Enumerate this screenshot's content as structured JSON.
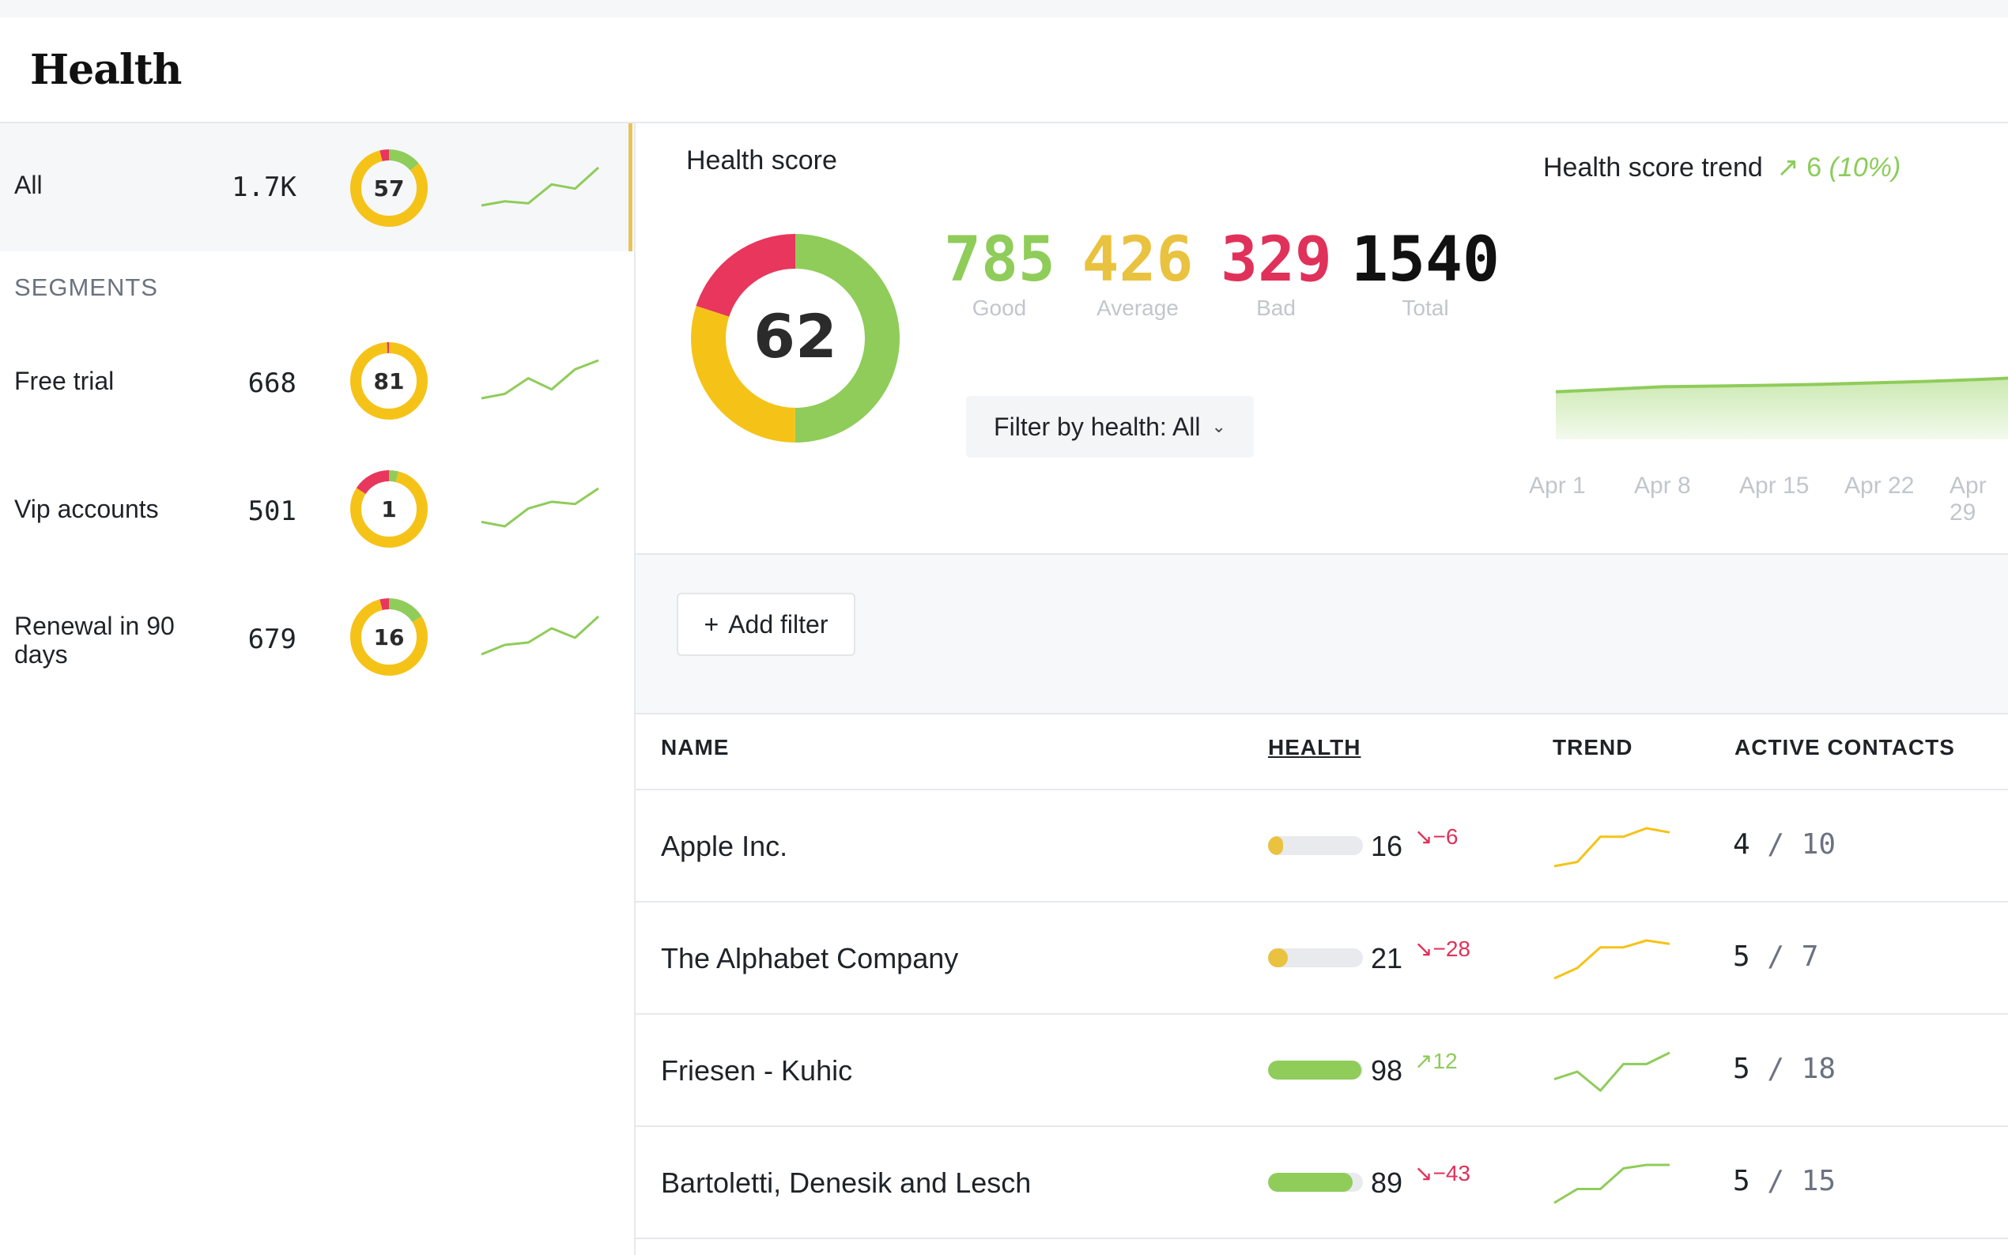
{
  "app": {
    "title": "Health"
  },
  "colors": {
    "good": "#8fcc5a",
    "average": "#f5c318",
    "bad": "#e8365d",
    "active_bar": "#e9c25a"
  },
  "sidebar": {
    "all": {
      "name": "All",
      "count": "1.7K",
      "score": "57",
      "good": 0.14,
      "average": 0.82,
      "bad": 0.04,
      "trend": [
        20,
        22,
        21,
        30,
        28,
        38
      ]
    },
    "segments_label": "SEGMENTS",
    "segments": [
      {
        "name": "Free trial",
        "count": "668",
        "score": "81",
        "good": 0.0,
        "average": 0.99,
        "bad": 0.01,
        "trend": [
          10,
          14,
          28,
          18,
          36,
          44
        ]
      },
      {
        "name": "Vip accounts",
        "count": "501",
        "score": "1",
        "good": 0.04,
        "average": 0.8,
        "bad": 0.16,
        "trend": [
          14,
          10,
          26,
          32,
          30,
          44
        ]
      },
      {
        "name": "Renewal in 90 days",
        "count": "679",
        "score": "16",
        "good": 0.16,
        "average": 0.8,
        "bad": 0.04,
        "trend": [
          10,
          18,
          20,
          32,
          24,
          42
        ]
      }
    ]
  },
  "health_score": {
    "title": "Health score",
    "score": "62",
    "good_frac": 0.5,
    "average_frac": 0.3,
    "bad_frac": 0.2,
    "stats": [
      {
        "value": "785",
        "label": "Good",
        "color": "#8fcc5a"
      },
      {
        "value": "426",
        "label": "Average",
        "color": "#e9c23f"
      },
      {
        "value": "329",
        "label": "Bad",
        "color": "#e0315a"
      },
      {
        "value": "1540",
        "label": "Total",
        "color": "#111111"
      }
    ],
    "filter_label": "Filter by health: All"
  },
  "trend": {
    "title": "Health score trend",
    "delta": "6",
    "delta_pct": "(10%)",
    "x_labels": [
      "Apr 1",
      "Apr 8",
      "Apr 15",
      "Apr 22",
      "Apr 29"
    ],
    "values": [
      56,
      57,
      58,
      58.3,
      58.6,
      59,
      59.6,
      60.2,
      61,
      62
    ]
  },
  "filters": {
    "add_label": "Add filter"
  },
  "table": {
    "columns": {
      "name": "NAME",
      "health": "HEALTH",
      "trend": "TREND",
      "contacts": "ACTIVE CONTACTS"
    },
    "rows": [
      {
        "name": "Apple Inc.",
        "health": "16",
        "delta": "−6",
        "dir": "down",
        "bar": 0.16,
        "bar_color": "#e9c23f",
        "active": "4",
        "total": "10",
        "trend_color": "#f5c318",
        "trend": [
          8,
          10,
          22,
          22,
          26,
          24
        ]
      },
      {
        "name": "The Alphabet Company",
        "health": "21",
        "delta": "−28",
        "dir": "down",
        "bar": 0.21,
        "bar_color": "#e9c23f",
        "active": "5",
        "total": "7",
        "trend_color": "#f5c318",
        "trend": [
          6,
          12,
          24,
          24,
          28,
          26
        ]
      },
      {
        "name": "Friesen - Kuhic",
        "health": "98",
        "delta": "12",
        "dir": "up",
        "bar": 0.98,
        "bar_color": "#8fcc5a",
        "active": "5",
        "total": "18",
        "trend_color": "#8fcc5a",
        "trend": [
          18,
          22,
          12,
          26,
          26,
          32
        ]
      },
      {
        "name": "Bartoletti, Denesik and Lesch",
        "health": "89",
        "delta": "−43",
        "dir": "down",
        "bar": 0.89,
        "bar_color": "#8fcc5a",
        "active": "5",
        "total": "15",
        "trend_color": "#8fcc5a",
        "trend": [
          6,
          14,
          14,
          26,
          28,
          28
        ]
      }
    ]
  }
}
